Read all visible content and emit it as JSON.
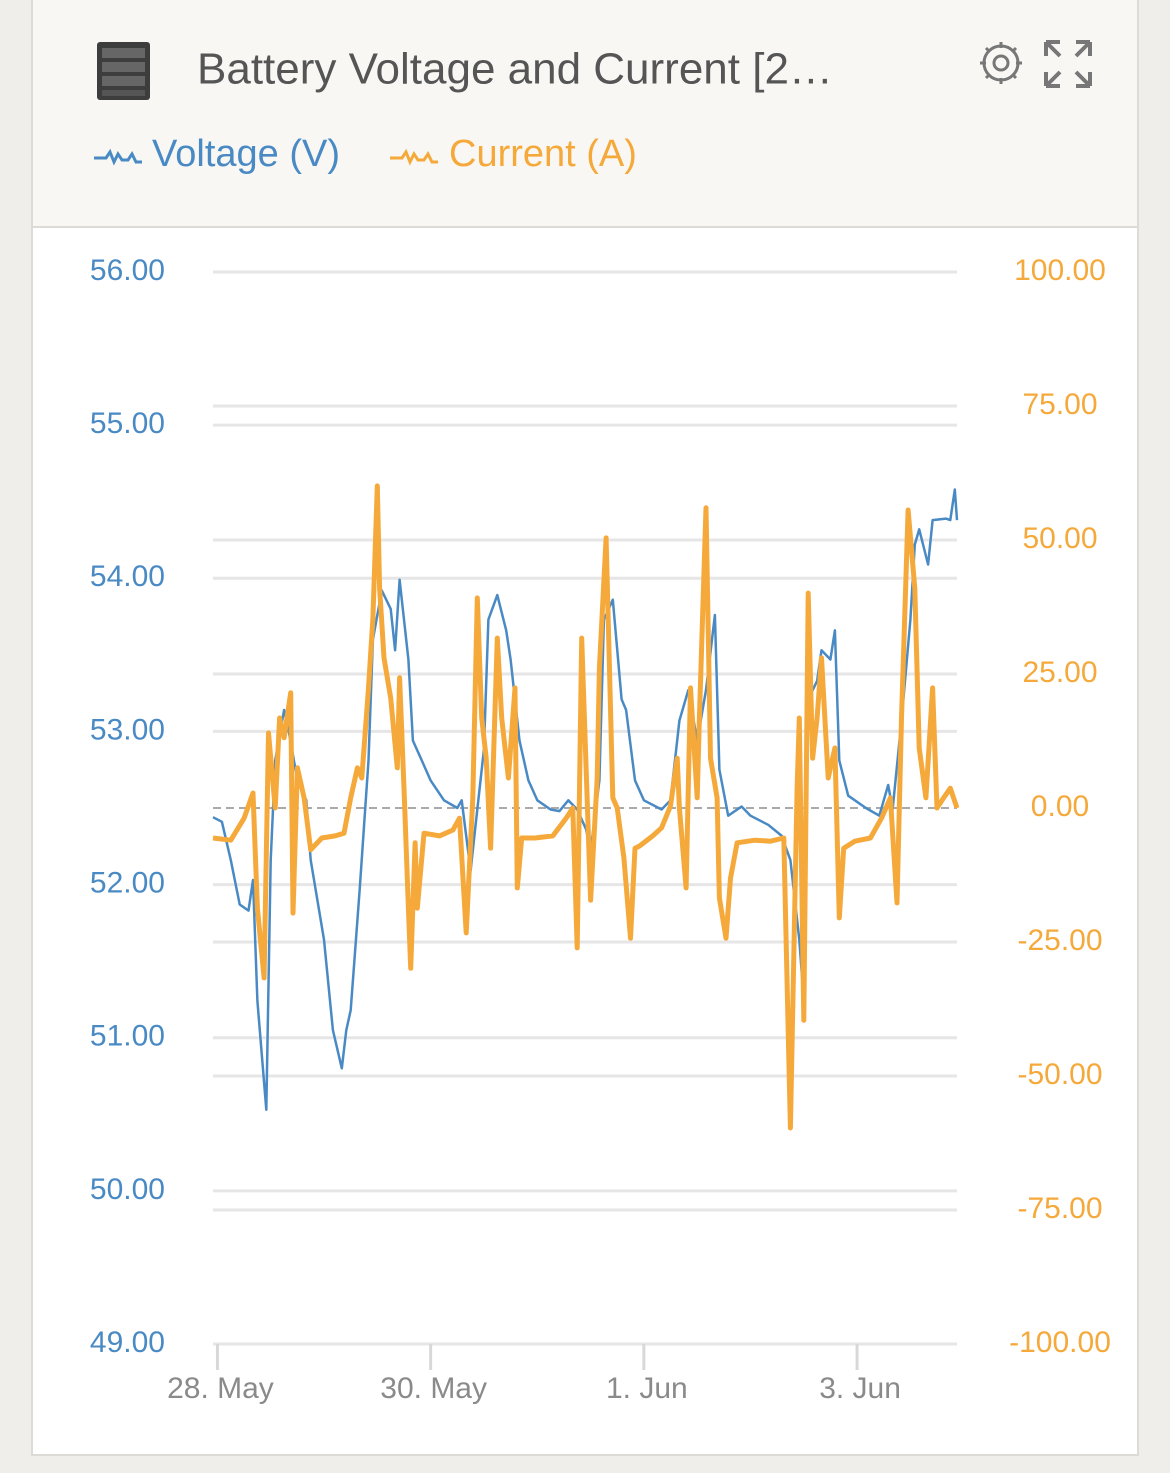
{
  "chart_data": {
    "type": "line",
    "title": "Battery Voltage and Current [2…",
    "grid": true,
    "xlim": [
      "05-27 23:00",
      "06-03 22:30"
    ],
    "xticks": [
      {
        "value": "05-28 00:00",
        "label": "28. May"
      },
      {
        "value": "05-30 00:00",
        "label": "30. May"
      },
      {
        "value": "06-01 00:00",
        "label": "1. Jun"
      },
      {
        "value": "06-03 00:00",
        "label": "3. Jun"
      }
    ],
    "ylim": [
      49,
      56
    ],
    "yticks": [
      {
        "value": 49,
        "label": "49.00"
      },
      {
        "value": 50,
        "label": "50.00"
      },
      {
        "value": 51,
        "label": "51.00"
      },
      {
        "value": 52,
        "label": "52.00"
      },
      {
        "value": 53,
        "label": "53.00"
      },
      {
        "value": 54,
        "label": "54.00"
      },
      {
        "value": 55,
        "label": "55.00"
      },
      {
        "value": 56,
        "label": "56.00"
      }
    ],
    "y2lim": [
      -100,
      100
    ],
    "y2ticks": [
      {
        "value": -100,
        "label": "-100.00"
      },
      {
        "value": -75,
        "label": "-75.00"
      },
      {
        "value": -50,
        "label": "-50.00"
      },
      {
        "value": -25,
        "label": "-25.00"
      },
      {
        "value": 0,
        "label": "0.00"
      },
      {
        "value": 25,
        "label": "25.00"
      },
      {
        "value": 50,
        "label": "50.00"
      },
      {
        "value": 75,
        "label": "75.00"
      },
      {
        "value": 100,
        "label": "100.00"
      }
    ],
    "series": [
      {
        "name": "Voltage (V)",
        "color": "#4a8ac4",
        "x": [
          "05-27 23:00",
          "05-28 01:00",
          "05-28 03:00",
          "05-28 05:00",
          "05-28 07:00",
          "05-28 08:00",
          "05-28 09:00",
          "05-28 11:00",
          "05-28 12:00",
          "05-28 13:00",
          "05-28 15:00",
          "05-28 16:00",
          "05-28 18:00",
          "05-28 20:00",
          "05-28 21:00",
          "05-29 00:00",
          "05-29 02:00",
          "05-29 04:00",
          "05-29 05:00",
          "05-29 06:00",
          "05-29 08:00",
          "05-29 10:00",
          "05-29 11:00",
          "05-29 13:00",
          "05-29 15:00",
          "05-29 16:00",
          "05-29 17:00",
          "05-29 19:00",
          "05-29 20:00",
          "05-29 22:00",
          "05-30 00:00",
          "05-30 03:00",
          "05-30 06:00",
          "05-30 07:00",
          "05-30 09:00",
          "05-30 10:00",
          "05-30 12:00",
          "05-30 13:00",
          "05-30 15:00",
          "05-30 17:00",
          "05-30 18:00",
          "05-30 20:00",
          "05-30 22:00",
          "05-31 00:00",
          "05-31 03:00",
          "05-31 05:00",
          "05-31 07:00",
          "05-31 09:00",
          "05-31 11:00",
          "05-31 12:00",
          "05-31 14:00",
          "05-31 15:00",
          "05-31 17:00",
          "05-31 19:00",
          "05-31 20:00",
          "05-31 22:00",
          "06-01 00:00",
          "06-01 04:00",
          "06-01 06:00",
          "06-01 08:00",
          "06-01 10:00",
          "06-01 12:00",
          "06-01 14:00",
          "06-01 16:00",
          "06-01 17:00",
          "06-01 19:00",
          "06-01 22:00",
          "06-02 00:00",
          "06-02 04:00",
          "06-02 07:00",
          "06-02 09:00",
          "06-02 11:00",
          "06-02 12:00",
          "06-02 13:00",
          "06-02 15:00",
          "06-02 16:00",
          "06-02 18:00",
          "06-02 19:00",
          "06-02 20:00",
          "06-02 22:00",
          "06-03 02:00",
          "06-03 05:00",
          "06-03 07:00",
          "06-03 08:00",
          "06-03 10:00",
          "06-03 12:00",
          "06-03 13:00",
          "06-03 14:00",
          "06-03 16:00",
          "06-03 17:00",
          "06-03 20:00",
          "06-03 21:00",
          "06-03 22:00",
          "06-03 22:30"
        ],
        "values": [
          52.44,
          52.41,
          52.16,
          51.87,
          51.83,
          52.03,
          51.24,
          50.53,
          52.16,
          52.81,
          53.14,
          53.01,
          52.68,
          52.55,
          52.16,
          51.64,
          51.05,
          50.8,
          51.05,
          51.18,
          51.96,
          52.81,
          53.6,
          53.92,
          53.8,
          53.53,
          53.99,
          53.47,
          52.94,
          52.81,
          52.68,
          52.55,
          52.5,
          52.55,
          52.09,
          52.36,
          52.88,
          53.73,
          53.89,
          53.66,
          53.47,
          52.94,
          52.68,
          52.55,
          52.49,
          52.48,
          52.55,
          52.49,
          52.36,
          52.22,
          52.68,
          53.73,
          53.86,
          53.21,
          53.14,
          52.68,
          52.55,
          52.49,
          52.55,
          53.07,
          53.27,
          52.94,
          53.27,
          53.76,
          52.75,
          52.45,
          52.51,
          52.45,
          52.39,
          52.32,
          52.16,
          51.64,
          51.24,
          53.21,
          53.33,
          53.53,
          53.47,
          53.66,
          52.81,
          52.58,
          52.5,
          52.45,
          52.65,
          52.49,
          53.07,
          53.73,
          54.22,
          54.32,
          54.09,
          54.38,
          54.39,
          54.38,
          54.58,
          54.38
        ]
      },
      {
        "name": "Current (A)",
        "color": "#f5a93b",
        "axis": "y2",
        "x": [
          "05-27 23:00",
          "05-28 03:00",
          "05-28 06:00",
          "05-28 08:00",
          "05-28 09:00",
          "05-28 10:30",
          "05-28 11:30",
          "05-28 13:00",
          "05-28 14:00",
          "05-28 15:00",
          "05-28 16:30",
          "05-28 17:00",
          "05-28 18:00",
          "05-28 19:30",
          "05-28 21:00",
          "05-28 23:30",
          "05-29 02:30",
          "05-29 04:30",
          "05-29 06:00",
          "05-29 07:30",
          "05-29 08:30",
          "05-29 10:00",
          "05-29 11:00",
          "05-29 12:00",
          "05-29 12:30",
          "05-29 13:30",
          "05-29 15:00",
          "05-29 16:30",
          "05-29 17:00",
          "05-29 18:00",
          "05-29 19:00",
          "05-29 19:30",
          "05-29 20:30",
          "05-29 21:00",
          "05-29 22:30",
          "05-30 02:00",
          "05-30 05:00",
          "05-30 06:30",
          "05-30 08:00",
          "05-30 09:30",
          "05-30 10:30",
          "05-30 11:30",
          "05-30 12:30",
          "05-30 13:30",
          "05-30 15:00",
          "05-30 16:00",
          "05-30 17:30",
          "05-30 19:00",
          "05-30 19:30",
          "05-30 20:30",
          "05-30 23:30",
          "05-31 03:30",
          "05-31 06:30",
          "05-31 08:00",
          "05-31 09:00",
          "05-31 10:00",
          "05-31 12:00",
          "05-31 13:30",
          "05-31 14:00",
          "05-31 15:30",
          "05-31 17:00",
          "05-31 18:00",
          "05-31 19:30",
          "05-31 21:00",
          "05-31 22:00",
          "05-31 23:00",
          "06-01 02:00",
          "06-01 04:00",
          "06-01 06:00",
          "06-01 07:30",
          "06-01 08:00",
          "06-01 09:30",
          "06-01 10:30",
          "06-01 12:00",
          "06-01 12:30",
          "06-01 14:00",
          "06-01 15:00",
          "06-01 16:30",
          "06-01 17:00",
          "06-01 18:30",
          "06-01 19:30",
          "06-01 21:00",
          "06-02 01:00",
          "06-02 04:30",
          "06-02 07:30",
          "06-02 09:00",
          "06-02 10:30",
          "06-02 11:00",
          "06-02 12:00",
          "06-02 13:00",
          "06-02 14:00",
          "06-02 15:00",
          "06-02 16:00",
          "06-02 17:30",
          "06-02 19:00",
          "06-02 20:00",
          "06-02 21:00",
          "06-02 23:30",
          "06-03 03:00",
          "06-03 05:30",
          "06-03 07:30",
          "06-03 09:00",
          "06-03 10:00",
          "06-03 11:30",
          "06-03 13:00",
          "06-03 14:00",
          "06-03 15:30",
          "06-03 17:00",
          "06-03 18:00",
          "06-03 19:30",
          "06-03 21:00",
          "06-03 22:30"
        ],
        "values": [
          -5.6,
          -6,
          -1.9,
          2.8,
          -18.7,
          -31.7,
          14,
          0,
          16.8,
          13.1,
          21.5,
          -19.6,
          7.5,
          1.9,
          -7.8,
          -5.6,
          -5.2,
          -4.7,
          1.9,
          7.5,
          5.6,
          22.4,
          35.4,
          60.1,
          41,
          28,
          20.5,
          7.5,
          24.3,
          3.7,
          -18.7,
          -29.9,
          -6.5,
          -18.7,
          -4.7,
          -5.2,
          -4.1,
          -1.9,
          -23.3,
          1.9,
          39.2,
          16.8,
          9.3,
          -7.5,
          31.7,
          16.8,
          5.6,
          22.4,
          -14.9,
          -5.6,
          -5.6,
          -5.2,
          -1.9,
          0,
          -26.1,
          31.7,
          -17.2,
          5.6,
          26.1,
          50.4,
          1.9,
          0,
          -9.3,
          -24.3,
          -7.5,
          -7.1,
          -5.2,
          -3.7,
          0.4,
          9.3,
          0,
          -14.9,
          22.4,
          1.9,
          16.8,
          56,
          9.3,
          1.9,
          -16.8,
          -24.3,
          -13.1,
          -6.5,
          -6,
          -6.2,
          -5.6,
          -59.7,
          3.7,
          16.8,
          -39.6,
          40.1,
          9.3,
          16.8,
          28,
          5.6,
          11.2,
          -20.5,
          -7.5,
          -6.2,
          -5.6,
          -1.9,
          1.9,
          -17.7,
          16.8,
          55.6,
          41,
          11.2,
          1.9,
          22.4,
          0,
          1.9,
          3.7,
          0
        ]
      }
    ]
  }
}
